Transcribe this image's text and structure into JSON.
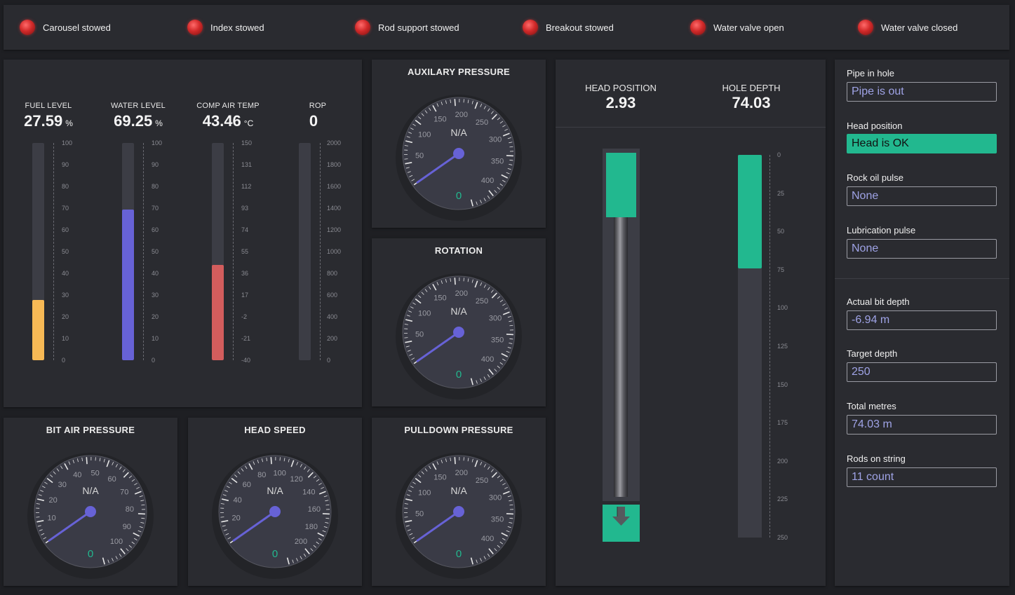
{
  "status_indicators": [
    {
      "label": "Carousel stowed",
      "state_color": "#d22a2a"
    },
    {
      "label": "Index stowed",
      "state_color": "#d22a2a"
    },
    {
      "label": "Rod support stowed",
      "state_color": "#d22a2a"
    },
    {
      "label": "Breakout stowed",
      "state_color": "#d22a2a"
    },
    {
      "label": "Water valve open",
      "state_color": "#d22a2a"
    },
    {
      "label": "Water valve closed",
      "state_color": "#d22a2a"
    }
  ],
  "levels": [
    {
      "title": "FUEL LEVEL",
      "value": "27.59",
      "unit": "%",
      "fill_fraction": 0.276,
      "color": "#f7b955",
      "ticks": [
        "100",
        "90",
        "80",
        "70",
        "60",
        "50",
        "40",
        "30",
        "20",
        "10",
        "0"
      ]
    },
    {
      "title": "WATER LEVEL",
      "value": "69.25",
      "unit": "%",
      "fill_fraction": 0.6925,
      "color": "#6762d6",
      "ticks": [
        "100",
        "90",
        "80",
        "70",
        "60",
        "50",
        "40",
        "30",
        "20",
        "10",
        "0"
      ]
    },
    {
      "title": "COMP AIR TEMP",
      "value": "43.46",
      "unit": "°C",
      "fill_fraction": 0.438,
      "color": "#d35d5d",
      "ticks": [
        "150",
        "131",
        "112",
        "93",
        "74",
        "55",
        "36",
        "17",
        "-2",
        "-21",
        "-40"
      ]
    },
    {
      "title": "ROP",
      "value": "0",
      "unit": "",
      "fill_fraction": 0,
      "color": "#6762d6",
      "ticks": [
        "2000",
        "1800",
        "1600",
        "1400",
        "1200",
        "1000",
        "800",
        "600",
        "400",
        "200",
        "0"
      ]
    }
  ],
  "gauges": {
    "auxiliary_pressure": {
      "title": "AUXILARY PRESSURE",
      "status": "N/A",
      "value": "0",
      "labels": [
        "50",
        "100",
        "150",
        "200",
        "250",
        "300",
        "350",
        "400"
      ]
    },
    "rotation": {
      "title": "ROTATION",
      "status": "N/A",
      "value": "0",
      "labels": [
        "50",
        "100",
        "150",
        "200",
        "250",
        "300",
        "350",
        "400"
      ]
    },
    "bit_air_pressure": {
      "title": "BIT AIR PRESSURE",
      "status": "N/A",
      "value": "0",
      "labels": [
        "10",
        "20",
        "30",
        "40",
        "50",
        "60",
        "70",
        "80",
        "90",
        "100"
      ]
    },
    "head_speed": {
      "title": "HEAD SPEED",
      "status": "N/A",
      "value": "0",
      "labels": [
        "20",
        "40",
        "60",
        "80",
        "100",
        "120",
        "140",
        "160",
        "180",
        "200"
      ]
    },
    "pulldown_pressure": {
      "title": "PULLDOWN PRESSURE",
      "status": "N/A",
      "value": "0",
      "labels": [
        "50",
        "100",
        "150",
        "200",
        "250",
        "300",
        "350",
        "400"
      ]
    }
  },
  "head": {
    "head_position_label": "HEAD POSITION",
    "head_position_value": "2.93",
    "hole_depth_label": "HOLE DEPTH",
    "hole_depth_value": "74.03",
    "depth_ticks": [
      "0",
      "25",
      "50",
      "75",
      "100",
      "125",
      "150",
      "175",
      "200",
      "225",
      "250"
    ],
    "hole_depth_fraction": 0.296,
    "accent": "#22b88f",
    "direction_icon": "arrow-down-icon"
  },
  "info": {
    "pipe_in_hole": {
      "label": "Pipe in hole",
      "value": "Pipe is out"
    },
    "head_position": {
      "label": "Head position",
      "value": "Head is OK"
    },
    "rock_oil_pulse": {
      "label": "Rock oil pulse",
      "value": "None"
    },
    "lubrication_pulse": {
      "label": "Lubrication pulse",
      "value": "None"
    },
    "actual_bit_depth": {
      "label": "Actual bit depth",
      "value": "-6.94 m"
    },
    "target_depth": {
      "label": "Target depth",
      "value": "250"
    },
    "total_metres": {
      "label": "Total metres",
      "value": "74.03 m"
    },
    "rods_on_string": {
      "label": "Rods on string",
      "value": "11 count"
    }
  }
}
